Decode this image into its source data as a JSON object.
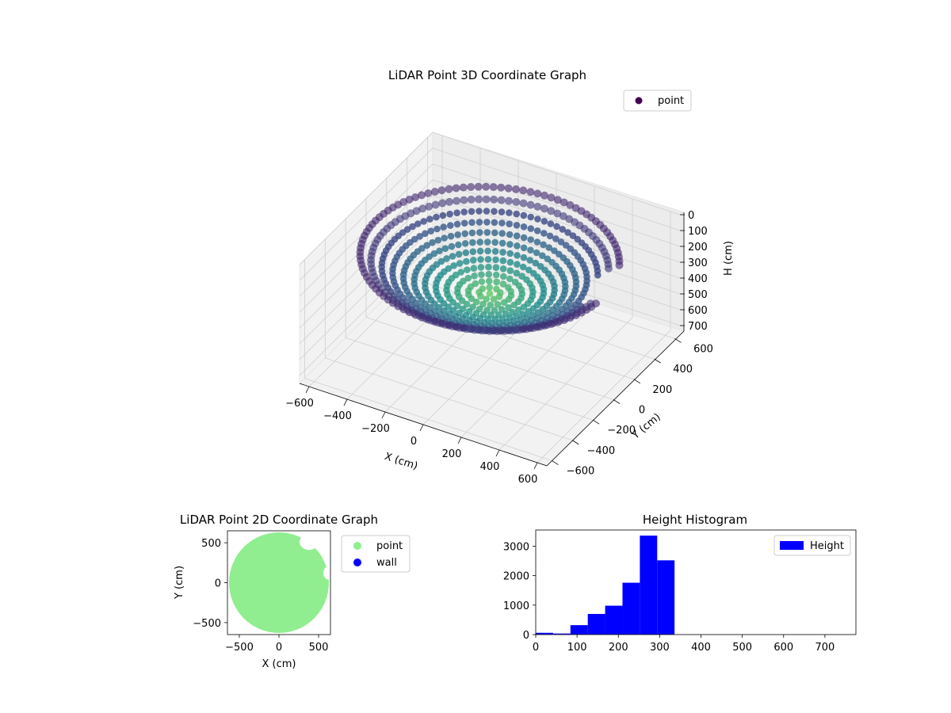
{
  "figure": {
    "background": "#ffffff"
  },
  "chart_data": [
    {
      "type": "scatter",
      "projection": "3d",
      "title": "LiDAR Point 3D Coordinate Graph",
      "xlabel": "X (cm)",
      "ylabel": "Y (cm)",
      "zlabel": "H (cm)",
      "xlim": [
        -650,
        650
      ],
      "ylim": [
        -650,
        650
      ],
      "zlim": [
        0,
        750
      ],
      "z_inverted": true,
      "xticks": [
        "−600",
        "−400",
        "−200",
        "0",
        "200",
        "400",
        "600"
      ],
      "yticks": [
        "−600",
        "−400",
        "−200",
        "0",
        "200",
        "400",
        "600"
      ],
      "zticks": [
        "0",
        "100",
        "200",
        "300",
        "400",
        "500",
        "600",
        "700"
      ],
      "grid": true,
      "legend": {
        "position": "top-right",
        "entries": [
          "point"
        ]
      },
      "colormap": [
        "#440154",
        "#3b528b",
        "#21918c",
        "#5ec962"
      ],
      "series": [
        {
          "name": "point",
          "color": "#440154",
          "shape": "bowl",
          "rim_radius": 600,
          "rim_height": 120,
          "bottom_height": 340,
          "rim_opening_angle_deg": 15
        }
      ]
    },
    {
      "type": "scatter",
      "title": "LiDAR Point 2D Coordinate Graph",
      "xlabel": "X (cm)",
      "ylabel": "Y (cm)",
      "xlim": [
        -650,
        650
      ],
      "ylim": [
        -650,
        650
      ],
      "xticks": [
        "−500",
        "0",
        "500"
      ],
      "yticks": [
        "−500",
        "0",
        "500"
      ],
      "legend": {
        "position": "outside-right",
        "entries": [
          "point",
          "wall"
        ]
      },
      "series": [
        {
          "name": "point",
          "color": "#90ee90",
          "region": "disc",
          "radius": 630
        },
        {
          "name": "wall",
          "color": "#0000ff",
          "points": []
        }
      ]
    },
    {
      "type": "bar",
      "subtype": "histogram",
      "title": "Height Histogram",
      "xlim": [
        0,
        775
      ],
      "ylim": [
        0,
        3550
      ],
      "xticks": [
        "0",
        "100",
        "200",
        "300",
        "400",
        "500",
        "600",
        "700"
      ],
      "yticks": [
        "0",
        "1000",
        "2000",
        "3000"
      ],
      "legend": {
        "position": "top-right",
        "entries": [
          "Height"
        ]
      },
      "series": [
        {
          "name": "Height",
          "color": "#0000ff",
          "bin_edges": [
            0,
            42,
            84,
            126,
            168,
            210,
            252,
            294,
            336
          ],
          "values": [
            60,
            35,
            320,
            700,
            980,
            1760,
            3360,
            2520
          ]
        }
      ]
    }
  ]
}
